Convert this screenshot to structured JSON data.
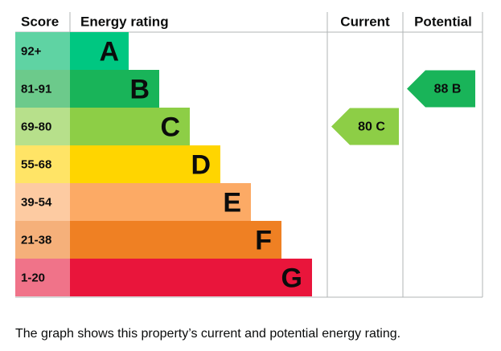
{
  "header": {
    "score": "Score",
    "energy_rating": "Energy rating",
    "current": "Current",
    "potential": "Potential"
  },
  "bands": [
    {
      "score": "92+",
      "letter": "A",
      "color": "#00c781",
      "light": "#5fd3a3"
    },
    {
      "score": "81-91",
      "letter": "B",
      "color": "#19b459",
      "light": "#6cca8b"
    },
    {
      "score": "69-80",
      "letter": "C",
      "color": "#8dce46",
      "light": "#b7e08b"
    },
    {
      "score": "55-68",
      "letter": "D",
      "color": "#ffd500",
      "light": "#ffe466"
    },
    {
      "score": "39-54",
      "letter": "E",
      "color": "#fcaa65",
      "light": "#fdcba2"
    },
    {
      "score": "21-38",
      "letter": "F",
      "color": "#ef8023",
      "light": "#f5b07a"
    },
    {
      "score": "1-20",
      "letter": "G",
      "color": "#e9153b",
      "light": "#f07389"
    }
  ],
  "current": {
    "label": "80 C",
    "color": "#8dce46"
  },
  "potential": {
    "label": "88 B",
    "color": "#19b459"
  },
  "caption": "The graph shows this property’s current and potential energy rating."
}
